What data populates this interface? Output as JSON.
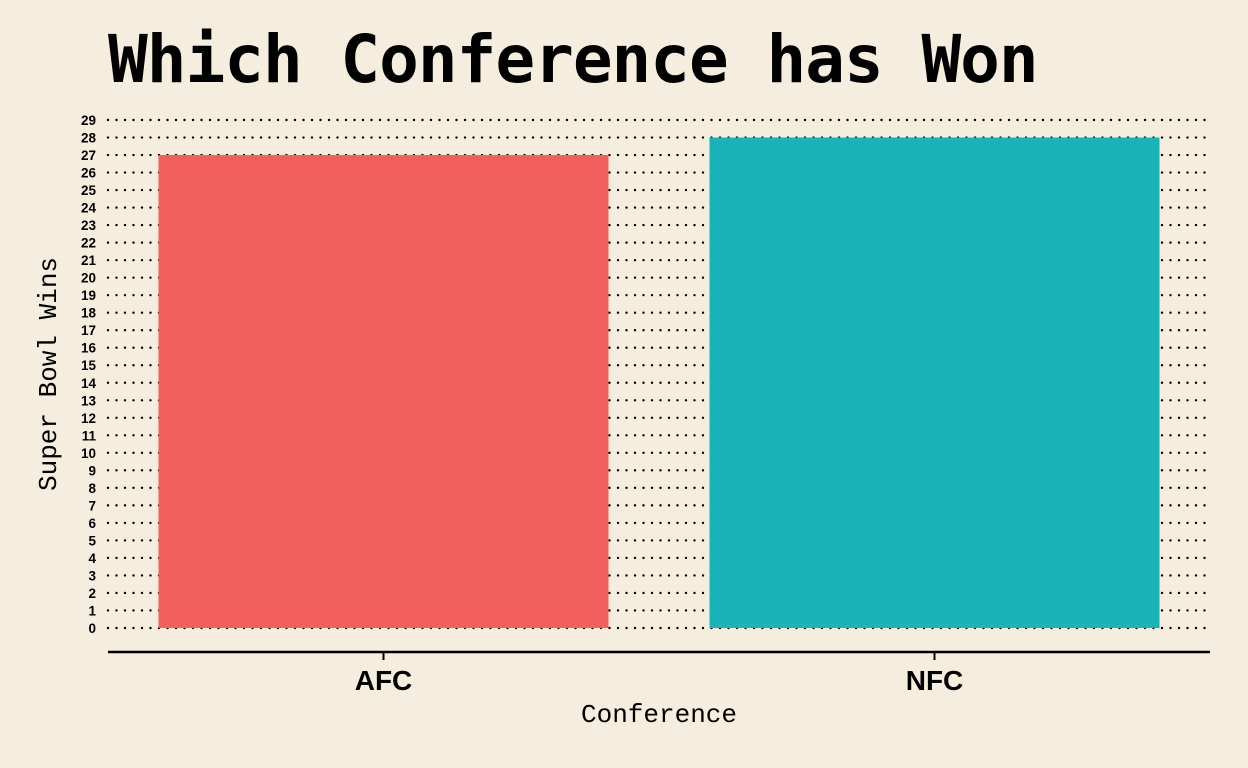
{
  "chart_data": {
    "type": "bar",
    "title": "Which Conference has Won",
    "xlabel": "Conference",
    "ylabel": "Super Bowl Wins",
    "categories": [
      "AFC",
      "NFC"
    ],
    "values": [
      27,
      28
    ],
    "colors": [
      "#f2605b",
      "#1ab3b8"
    ],
    "ylim": [
      0,
      29
    ],
    "yticks": [
      0,
      1,
      2,
      3,
      4,
      5,
      6,
      7,
      8,
      9,
      10,
      11,
      12,
      13,
      14,
      15,
      16,
      17,
      18,
      19,
      20,
      21,
      22,
      23,
      24,
      25,
      26,
      27,
      28,
      29
    ],
    "grid": "dotted",
    "background": "#f5eedf"
  }
}
